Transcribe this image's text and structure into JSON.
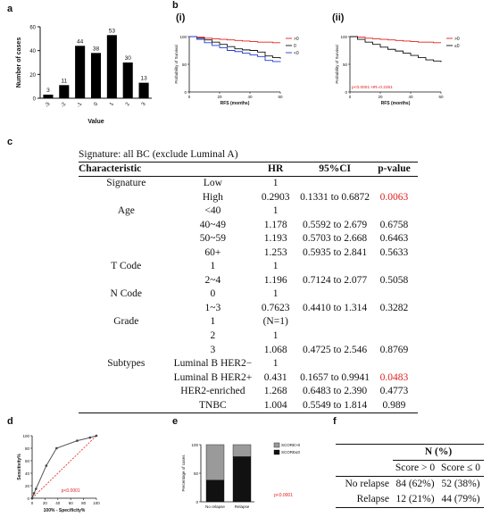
{
  "panels": {
    "a": "a",
    "b": "b",
    "c": "c",
    "d": "d",
    "e": "e",
    "f": "f"
  },
  "panel_b": {
    "i_label": "(i)",
    "ii_label": "(ii)"
  },
  "chart_data": [
    {
      "id": "a",
      "type": "bar",
      "categories": [
        "-3",
        "-2",
        "-1",
        "0",
        "1",
        "2",
        "3"
      ],
      "values": [
        3,
        11,
        44,
        38,
        53,
        30,
        13
      ],
      "ylabel": "Number of cases",
      "xlabel": "Value",
      "ylim": [
        0,
        60
      ],
      "yticks": [
        0,
        20,
        40,
        60
      ],
      "color": "#000000"
    },
    {
      "id": "b-i",
      "type": "line",
      "xlabel": "RFS (months)",
      "ylabel": "Probability of Survival",
      "xlim": [
        0,
        60
      ],
      "xticks": [
        0,
        20,
        40,
        60
      ],
      "ylim": [
        0,
        100
      ],
      "yticks": [
        0,
        50,
        100
      ],
      "legend_position": "top-right",
      "series": [
        {
          "name": ">0",
          "color": "#e02020",
          "x": [
            0,
            5,
            10,
            15,
            20,
            25,
            30,
            35,
            40,
            45,
            50,
            55,
            60
          ],
          "y": [
            100,
            99,
            97,
            96,
            95,
            94,
            93,
            92,
            91,
            90,
            90,
            89,
            89
          ]
        },
        {
          "name": "0",
          "color": "#111111",
          "x": [
            0,
            5,
            10,
            15,
            20,
            25,
            30,
            35,
            40,
            45,
            50,
            55,
            60
          ],
          "y": [
            100,
            97,
            94,
            90,
            86,
            82,
            78,
            76,
            75,
            72,
            65,
            62,
            60
          ]
        },
        {
          "name": "<0",
          "color": "#1f3bd0",
          "x": [
            0,
            5,
            10,
            15,
            20,
            25,
            30,
            35,
            40,
            45,
            50,
            55,
            60
          ],
          "y": [
            100,
            95,
            89,
            84,
            80,
            75,
            73,
            70,
            67,
            64,
            57,
            55,
            54
          ]
        }
      ]
    },
    {
      "id": "b-ii",
      "type": "line",
      "xlabel": "RFS (months)",
      "ylabel": "Probability of Survival",
      "xlim": [
        0,
        60
      ],
      "xticks": [
        0,
        20,
        40,
        60
      ],
      "ylim": [
        0,
        100
      ],
      "yticks": [
        0,
        50,
        100
      ],
      "legend_position": "top-right",
      "annotation": "p<0.0001  HR=0.2251",
      "series": [
        {
          "name": ">0",
          "color": "#e02020",
          "x": [
            0,
            5,
            10,
            15,
            20,
            25,
            30,
            35,
            40,
            45,
            50,
            55,
            60
          ],
          "y": [
            100,
            99,
            97,
            96,
            95,
            94,
            93,
            92,
            91,
            90,
            90,
            89,
            89
          ]
        },
        {
          "name": "≤0",
          "color": "#111111",
          "x": [
            0,
            5,
            10,
            15,
            20,
            25,
            30,
            35,
            40,
            45,
            50,
            55,
            60
          ],
          "y": [
            100,
            95,
            90,
            86,
            81,
            77,
            74,
            70,
            66,
            62,
            58,
            56,
            54
          ]
        }
      ]
    },
    {
      "id": "d",
      "type": "line",
      "xlabel": "100% - Specificity%",
      "ylabel": "Sensitivity%",
      "xlim": [
        0,
        100
      ],
      "xticks": [
        0,
        20,
        40,
        60,
        80,
        100
      ],
      "ylim": [
        0,
        100
      ],
      "yticks": [
        0,
        20,
        40,
        60,
        80,
        100
      ],
      "annotation": "p<0.0001",
      "series": [
        {
          "name": "",
          "color": "#555555",
          "x": [
            0,
            3,
            6,
            22,
            38,
            70,
            90,
            100
          ],
          "y": [
            0,
            8,
            15,
            52,
            80,
            92,
            97,
            100
          ]
        }
      ]
    },
    {
      "id": "e",
      "type": "bar",
      "categories": [
        "No relapse",
        "Relapse"
      ],
      "ylabel": "Percentage of cases",
      "ylim": [
        0,
        100
      ],
      "yticks": [
        0,
        50,
        100
      ],
      "stacked": true,
      "annotation": "p<0.0001",
      "series": [
        {
          "name": "SCORE≤0",
          "color": "#111111",
          "values": [
            38,
            79
          ]
        },
        {
          "name": "SCORE>0",
          "color": "#9a9a9a",
          "values": [
            62,
            21
          ]
        }
      ]
    }
  ],
  "table_c": {
    "title": "Signature: all BC (exclude Luminal A)",
    "headers": [
      "Characteristic",
      "",
      "HR",
      "95%CI",
      "p-value"
    ],
    "rows": [
      [
        "Signature",
        "Low",
        "1",
        "",
        ""
      ],
      [
        "",
        "High",
        "0.2903",
        "0.1331 to 0.6872",
        "0.0063"
      ],
      [
        "Age",
        "<40",
        "1",
        "",
        ""
      ],
      [
        "",
        "40~49",
        "1.178",
        "0.5592 to 2.679",
        "0.6758"
      ],
      [
        "",
        "50~59",
        "1.193",
        "0.5703 to 2.668",
        "0.6463"
      ],
      [
        "",
        "60+",
        "1.253",
        "0.5935 to 2.841",
        "0.5633"
      ],
      [
        "T Code",
        "1",
        "1",
        "",
        ""
      ],
      [
        "",
        "2~4",
        "1.196",
        "0.7124 to 2.077",
        "0.5058"
      ],
      [
        "N Code",
        "0",
        "1",
        "",
        ""
      ],
      [
        "",
        "1~3",
        "0.7623",
        "0.4410 to 1.314",
        "0.3282"
      ],
      [
        "Grade",
        "1",
        "(N=1)",
        "",
        ""
      ],
      [
        "",
        "2",
        "1",
        "",
        ""
      ],
      [
        "",
        "3",
        "1.068",
        "0.4725 to 2.546",
        "0.8769"
      ],
      [
        "Subtypes",
        "Luminal B HER2−",
        "1",
        "",
        ""
      ],
      [
        "",
        "Luminal B HER2+",
        "0.431",
        "0.1657 to 0.9941",
        "0.0483"
      ],
      [
        "",
        "HER2-enriched",
        "1.268",
        "0.6483 to 2.390",
        "0.4773"
      ],
      [
        "",
        "TNBC",
        "1.004",
        "0.5549 to 1.814",
        "0.989"
      ]
    ],
    "highlight_color": "#e02020",
    "highlight_pvalues": [
      "0.0063",
      "0.0483"
    ]
  },
  "table_f": {
    "group_header": "N (%)",
    "col_headers": [
      "Score > 0",
      "Score ≤ 0"
    ],
    "rows": [
      {
        "label": "No relapse",
        "a": "84 (62%)",
        "b": "52 (38%)"
      },
      {
        "label": "Relapse",
        "a": "12 (21%)",
        "b": "44 (79%)"
      }
    ]
  }
}
